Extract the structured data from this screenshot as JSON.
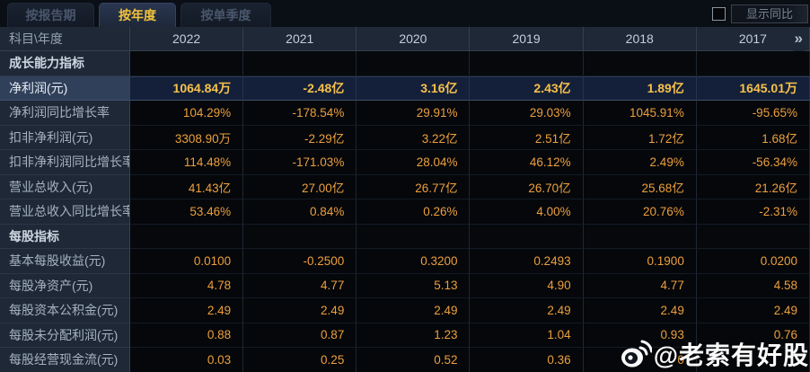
{
  "tabs": [
    {
      "label": "按报告期",
      "active": false
    },
    {
      "label": "按年度",
      "active": true
    },
    {
      "label": "按单季度",
      "active": false
    }
  ],
  "controls": {
    "show_yoy_label": "显示同比",
    "checkbox_checked": false
  },
  "table": {
    "corner_label": "科目\\年度",
    "columns": [
      "2022",
      "2021",
      "2020",
      "2019",
      "2018",
      "2017"
    ],
    "more_icon": "»",
    "rows": [
      {
        "type": "section",
        "label": "成长能力指标"
      },
      {
        "type": "data",
        "highlight": true,
        "label": "净利润(元)",
        "values": [
          "1064.84万",
          "-2.48亿",
          "3.16亿",
          "2.43亿",
          "1.89亿",
          "1645.01万"
        ]
      },
      {
        "type": "data",
        "label": "净利润同比增长率",
        "values": [
          "104.29%",
          "-178.54%",
          "29.91%",
          "29.03%",
          "1045.91%",
          "-95.65%"
        ]
      },
      {
        "type": "data",
        "label": "扣非净利润(元)",
        "values": [
          "3308.90万",
          "-2.29亿",
          "3.22亿",
          "2.51亿",
          "1.72亿",
          "1.68亿"
        ]
      },
      {
        "type": "data",
        "label": "扣非净利润同比增长率",
        "values": [
          "114.48%",
          "-171.03%",
          "28.04%",
          "46.12%",
          "2.49%",
          "-56.34%"
        ]
      },
      {
        "type": "data",
        "label": "营业总收入(元)",
        "values": [
          "41.43亿",
          "27.00亿",
          "26.77亿",
          "26.70亿",
          "25.68亿",
          "21.26亿"
        ]
      },
      {
        "type": "data",
        "label": "营业总收入同比增长率",
        "values": [
          "53.46%",
          "0.84%",
          "0.26%",
          "4.00%",
          "20.76%",
          "-2.31%"
        ]
      },
      {
        "type": "section",
        "label": "每股指标"
      },
      {
        "type": "data",
        "label": "基本每股收益(元)",
        "values": [
          "0.0100",
          "-0.2500",
          "0.3200",
          "0.2493",
          "0.1900",
          "0.0200"
        ]
      },
      {
        "type": "data",
        "label": "每股净资产(元)",
        "values": [
          "4.78",
          "4.77",
          "5.13",
          "4.90",
          "4.77",
          "4.58"
        ]
      },
      {
        "type": "data",
        "label": "每股资本公积金(元)",
        "values": [
          "2.49",
          "2.49",
          "2.49",
          "2.49",
          "2.49",
          "2.49"
        ]
      },
      {
        "type": "data",
        "label": "每股未分配利润(元)",
        "values": [
          "0.88",
          "0.87",
          "1.23",
          "1.04",
          "0.93",
          "0.76"
        ]
      },
      {
        "type": "data",
        "label": "每股经营现金流(元)",
        "values": [
          "0.03",
          "0.25",
          "0.52",
          "0.36",
          "0",
          ""
        ]
      }
    ]
  },
  "watermark": {
    "text": "@老索有好股",
    "icon": "weibo"
  },
  "colors": {
    "accent_gold": "#f3c33c",
    "value_orange": "#ec9f3d",
    "highlight_row_bg": "#14203a",
    "panel_bg": "#0a0e15",
    "header_bg": "#1e2836"
  }
}
